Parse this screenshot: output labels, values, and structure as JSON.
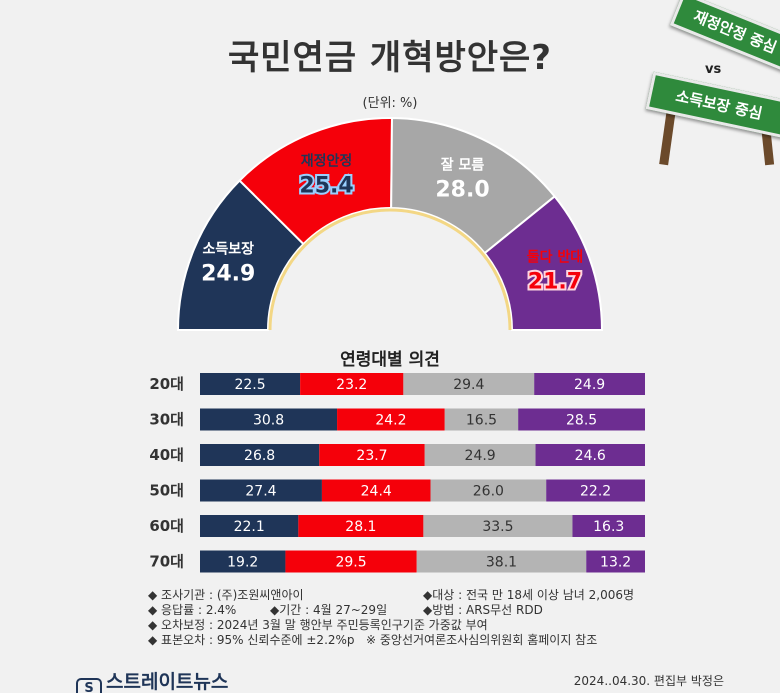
{
  "title": "국민연금 개혁방안은?",
  "unit": "(단위: %)",
  "signs": {
    "top": "재정안정 중심",
    "vs": "vs",
    "bottom": "소득보장 중심"
  },
  "chart_data": [
    {
      "type": "pie",
      "subtype": "semi-donut",
      "categories": [
        "소득보장",
        "재정안정",
        "잘 모름",
        "둘다 반대"
      ],
      "values": [
        24.9,
        25.4,
        28.0,
        21.7
      ],
      "labels": [
        "24.9",
        "25.4",
        "28.0",
        "21.7"
      ],
      "colors": [
        "#1f3558",
        "#f5000a",
        "#a7a7a7",
        "#6d2d91"
      ]
    },
    {
      "type": "bar",
      "subtype": "stacked-horizontal-100",
      "title": "연령대별 의견",
      "categories": [
        "20대",
        "30대",
        "40대",
        "50대",
        "60대",
        "70대"
      ],
      "series": [
        {
          "name": "소득보장",
          "color": "#1f3558",
          "values": [
            22.5,
            30.8,
            26.8,
            27.4,
            22.1,
            19.2
          ],
          "labels": [
            "22.5",
            "30.8",
            "26.8",
            "27.4",
            "22.1",
            "19.2"
          ]
        },
        {
          "name": "재정안정",
          "color": "#f5000a",
          "values": [
            23.2,
            24.2,
            23.7,
            24.4,
            28.1,
            29.5
          ],
          "labels": [
            "23.2",
            "24.2",
            "23.7",
            "24.4",
            "28.1",
            "29.5"
          ]
        },
        {
          "name": "잘 모름",
          "color": "#b4b4b4",
          "values": [
            29.4,
            16.5,
            24.9,
            26.0,
            33.5,
            38.1
          ],
          "labels": [
            "29.4",
            "16.5",
            "24.9",
            "26.0",
            "33.5",
            "38.1"
          ]
        },
        {
          "name": "둘다 반대",
          "color": "#6d2d91",
          "values": [
            24.9,
            28.5,
            24.6,
            22.2,
            16.3,
            13.2
          ],
          "labels": [
            "24.9",
            "28.5",
            "24.6",
            "22.2",
            "16.3",
            "13.2"
          ]
        }
      ]
    }
  ],
  "footer": {
    "row1": {
      "left": "◆ 조사기관 : (주)조원씨앤아이",
      "right": "◆대상 : 전국 만 18세 이상 남녀 2,006명"
    },
    "row2": {
      "left": "◆ 응답률 : 2.4%",
      "mid": "◆기간 : 4월 27~29일",
      "right": "◆방법 : ARS무선 RDD"
    },
    "row3": "◆ 오차보정 : 2024년 3월 말 행안부 주민등록인구기준 가중값 부여",
    "row4": {
      "left": "◆ 표본오차 : 95% 신뢰수준에 ±2.2%p",
      "right": "※ 중앙선거여론조사심의위원회 홈페이지 참조"
    }
  },
  "brand": {
    "mark": "S",
    "name": "스트레이트뉴스"
  },
  "credit": "2024..04.30. 편집부 박정은"
}
